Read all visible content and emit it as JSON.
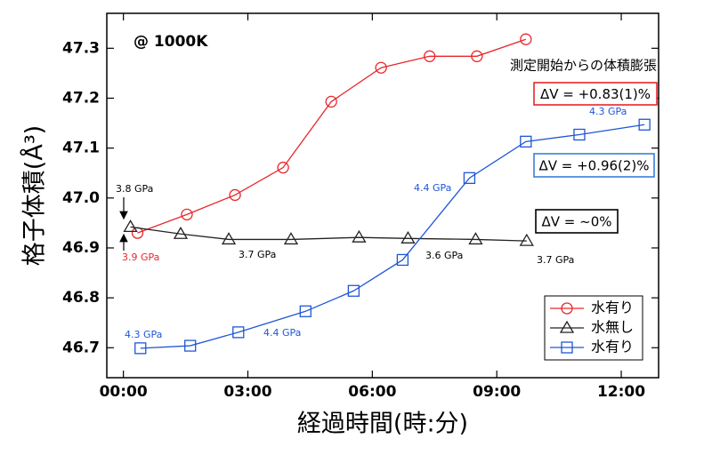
{
  "chart_data": {
    "type": "line",
    "title": "@ 1000K",
    "subtitle": "測定開始からの体積膨張",
    "x_label": "経過時間(時:分)",
    "y_label": "格子体積(Å³)",
    "xlim": [
      -0.4,
      12.9
    ],
    "ylim": [
      46.64,
      47.37
    ],
    "xticks": [
      {
        "value": 0,
        "label": "00:00"
      },
      {
        "value": 3,
        "label": "03:00"
      },
      {
        "value": 6,
        "label": "06:00"
      },
      {
        "value": 9,
        "label": "09:00"
      },
      {
        "value": 12,
        "label": "12:00"
      }
    ],
    "yticks": [
      46.7,
      46.8,
      46.9,
      47.0,
      47.1,
      47.2,
      47.3
    ],
    "legend": "lower right",
    "series": [
      {
        "name": "水有り",
        "color": "#e8262b",
        "marker": "circle",
        "x": [
          0.34,
          1.53,
          2.69,
          3.85,
          5.01,
          6.21,
          7.38,
          8.52,
          9.7
        ],
        "values": [
          46.93,
          46.967,
          47.006,
          47.061,
          47.193,
          47.261,
          47.284,
          47.284,
          47.318
        ]
      },
      {
        "name": "水無し",
        "color": "#222222",
        "marker": "triangle",
        "x": [
          0.17,
          1.38,
          2.54,
          4.04,
          5.68,
          6.86,
          8.49,
          9.72
        ],
        "values": [
          46.942,
          46.928,
          46.917,
          46.917,
          46.921,
          46.919,
          46.917,
          46.914
        ]
      },
      {
        "name": "水有り",
        "color": "#1f56d6",
        "marker": "square",
        "x": [
          0.41,
          1.61,
          2.77,
          4.39,
          5.55,
          6.73,
          8.34,
          9.7,
          10.99,
          12.56
        ],
        "values": [
          46.699,
          46.704,
          46.731,
          46.773,
          46.814,
          46.876,
          47.04,
          47.113,
          47.127,
          47.147
        ]
      }
    ],
    "boxes": [
      {
        "text": "ΔV = +0.83(1)%",
        "color": "#e8262b"
      },
      {
        "text": "ΔV = +0.96(2)%",
        "color": "#3a7fd8"
      },
      {
        "text": "ΔV = ~0%",
        "color": "#000000"
      }
    ],
    "annotations": [
      {
        "text": "3.8 GPa",
        "color": "#000000"
      },
      {
        "text": "3.9 GPa",
        "color": "#e8262b"
      },
      {
        "text": "3.7 GPa",
        "color": "#000000"
      },
      {
        "text": "3.6 GPa",
        "color": "#000000"
      },
      {
        "text": "3.7 GPa",
        "color": "#000000"
      },
      {
        "text": "4.3 GPa",
        "color": "#1f56d6"
      },
      {
        "text": "4.4 GPa",
        "color": "#1f56d6"
      },
      {
        "text": "4.4 GPa",
        "color": "#1f56d6"
      },
      {
        "text": "4.3 GPa",
        "color": "#1f56d6"
      }
    ]
  }
}
